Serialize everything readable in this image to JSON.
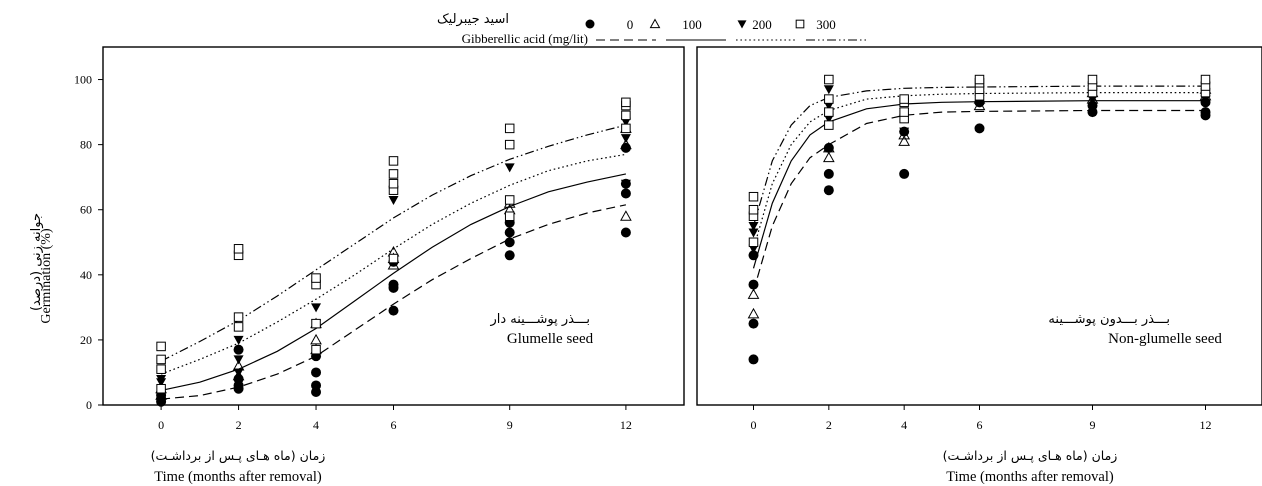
{
  "legend": {
    "title_fa": "اسید جیبرلیک",
    "title_en": "Gibberellic acid (mg/lit)",
    "entries": [
      {
        "label": "0",
        "marker": "filled-circle",
        "line": "dashed"
      },
      {
        "label": "100",
        "marker": "open-triangle",
        "line": "solid"
      },
      {
        "label": "200",
        "marker": "filled-triangle-down",
        "line": "dotted"
      },
      {
        "label": "300",
        "marker": "open-square",
        "line": "dash-dot-dot"
      }
    ]
  },
  "ylabel_fa": "جوانه زنی (درصد)",
  "ylabel_en": "Germination (%)",
  "chart_data": [
    {
      "type": "scatter",
      "panel_fa": "بـــذر پوشـــینه دار",
      "panel_en": "Glumelle seed",
      "xlabel_fa": "زمان (ماه هـای پـس از برداشـت)",
      "xlabel_en": "Time (months after removal)",
      "x_ticks": [
        "0",
        "2",
        "4",
        "6",
        "9",
        "12"
      ],
      "y_ticks": [
        "0",
        "20",
        "40",
        "60",
        "80",
        "100"
      ],
      "xlim": [
        -1.5,
        13.5
      ],
      "ylim": [
        0,
        110
      ],
      "series": [
        {
          "name": "0",
          "marker": "filled-circle",
          "line": "dashed",
          "points": [
            [
              0,
              1
            ],
            [
              0,
              2
            ],
            [
              0,
              3
            ],
            [
              2,
              5
            ],
            [
              2,
              6
            ],
            [
              2,
              8
            ],
            [
              2,
              17
            ],
            [
              4,
              4
            ],
            [
              4,
              6
            ],
            [
              4,
              10
            ],
            [
              4,
              15
            ],
            [
              6,
              29
            ],
            [
              6,
              36
            ],
            [
              6,
              37
            ],
            [
              6,
              44
            ],
            [
              9,
              46
            ],
            [
              9,
              50
            ],
            [
              9,
              53
            ],
            [
              9,
              56
            ],
            [
              12,
              53
            ],
            [
              12,
              65
            ],
            [
              12,
              68
            ],
            [
              12,
              79
            ]
          ],
          "curve": [
            [
              0,
              1.8
            ],
            [
              1,
              2.9
            ],
            [
              2,
              5.5
            ],
            [
              3,
              9.5
            ],
            [
              4,
              15
            ],
            [
              5,
              23
            ],
            [
              6,
              31
            ],
            [
              7,
              38.5
            ],
            [
              8,
              45
            ],
            [
              9,
              51
            ],
            [
              10,
              55.5
            ],
            [
              11,
              59
            ],
            [
              12,
              61.5
            ]
          ]
        },
        {
          "name": "100",
          "marker": "open-triangle",
          "line": "solid",
          "points": [
            [
              0,
              3
            ],
            [
              0,
              5
            ],
            [
              2,
              9
            ],
            [
              2,
              12
            ],
            [
              4,
              17
            ],
            [
              4,
              20
            ],
            [
              4,
              25
            ],
            [
              6,
              43
            ],
            [
              6,
              45
            ],
            [
              6,
              47
            ],
            [
              9,
              60
            ],
            [
              9,
              62
            ],
            [
              12,
              58
            ],
            [
              12,
              80
            ],
            [
              12,
              85
            ]
          ],
          "curve": [
            [
              0,
              4.5
            ],
            [
              1,
              7
            ],
            [
              2,
              11
            ],
            [
              3,
              16.5
            ],
            [
              4,
              23.5
            ],
            [
              5,
              32
            ],
            [
              6,
              40.5
            ],
            [
              7,
              48.5
            ],
            [
              8,
              55.5
            ],
            [
              9,
              61
            ],
            [
              10,
              65.5
            ],
            [
              11,
              68.5
            ],
            [
              12,
              71
            ]
          ]
        },
        {
          "name": "200",
          "marker": "filled-triangle-down",
          "line": "dotted",
          "points": [
            [
              0,
              7
            ],
            [
              0,
              8
            ],
            [
              2,
              10
            ],
            [
              2,
              14
            ],
            [
              2,
              20
            ],
            [
              4,
              25
            ],
            [
              4,
              30
            ],
            [
              6,
              36
            ],
            [
              6,
              63
            ],
            [
              6,
              66
            ],
            [
              9,
              73
            ],
            [
              12,
              68
            ],
            [
              12,
              82
            ],
            [
              12,
              87
            ]
          ],
          "curve": [
            [
              0,
              9.5
            ],
            [
              1,
              14
            ],
            [
              2,
              19
            ],
            [
              3,
              25.5
            ],
            [
              4,
              32.5
            ],
            [
              5,
              40
            ],
            [
              6,
              48
            ],
            [
              7,
              55.5
            ],
            [
              8,
              62
            ],
            [
              9,
              67.5
            ],
            [
              10,
              72
            ],
            [
              11,
              75
            ],
            [
              12,
              77
            ]
          ]
        },
        {
          "name": "300",
          "marker": "open-square",
          "line": "dash-dot-dot",
          "points": [
            [
              0,
              5
            ],
            [
              0,
              11
            ],
            [
              0,
              14
            ],
            [
              0,
              18
            ],
            [
              2,
              24
            ],
            [
              2,
              27
            ],
            [
              2,
              46
            ],
            [
              2,
              48
            ],
            [
              4,
              17
            ],
            [
              4,
              25
            ],
            [
              4,
              37
            ],
            [
              4,
              39
            ],
            [
              6,
              45
            ],
            [
              6,
              66
            ],
            [
              6,
              68
            ],
            [
              6,
              71
            ],
            [
              6,
              75
            ],
            [
              9,
              58
            ],
            [
              9,
              63
            ],
            [
              9,
              80
            ],
            [
              9,
              85
            ],
            [
              12,
              85
            ],
            [
              12,
              89
            ],
            [
              12,
              92
            ],
            [
              12,
              93
            ]
          ],
          "curve": [
            [
              0,
              13.5
            ],
            [
              1,
              19.5
            ],
            [
              2,
              26
            ],
            [
              3,
              33.5
            ],
            [
              4,
              41.5
            ],
            [
              5,
              49.5
            ],
            [
              6,
              57.5
            ],
            [
              7,
              64.5
            ],
            [
              8,
              70.5
            ],
            [
              9,
              75.5
            ],
            [
              10,
              79.5
            ],
            [
              11,
              83
            ],
            [
              12,
              86
            ]
          ]
        }
      ]
    },
    {
      "type": "scatter",
      "panel_fa": "بـــذر بـــدون پوشـــینه",
      "panel_en": "Non-glumelle seed",
      "xlabel_fa": "زمان (ماه هـای پـس از برداشـت)",
      "xlabel_en": "Time (months after removal)",
      "x_ticks": [
        "0",
        "2",
        "4",
        "6",
        "9",
        "12"
      ],
      "y_ticks": [],
      "xlim": [
        -1.5,
        13.5
      ],
      "ylim": [
        0,
        110
      ],
      "series": [
        {
          "name": "0",
          "marker": "filled-circle",
          "line": "dashed",
          "points": [
            [
              0,
              14
            ],
            [
              0,
              25
            ],
            [
              0,
              37
            ],
            [
              0,
              46
            ],
            [
              2,
              66
            ],
            [
              2,
              71
            ],
            [
              2,
              79
            ],
            [
              4,
              71
            ],
            [
              4,
              84
            ],
            [
              6,
              85
            ],
            [
              6,
              93
            ],
            [
              9,
              90
            ],
            [
              9,
              92
            ],
            [
              12,
              89
            ],
            [
              12,
              90
            ],
            [
              12,
              93
            ]
          ],
          "curve": [
            [
              0,
              35
            ],
            [
              0.5,
              55
            ],
            [
              1,
              68
            ],
            [
              1.5,
              76
            ],
            [
              2,
              80
            ],
            [
              3,
              86.5
            ],
            [
              4,
              89
            ],
            [
              5,
              90
            ],
            [
              6,
              90.2
            ],
            [
              9,
              90.5
            ],
            [
              12,
              90.5
            ]
          ]
        },
        {
          "name": "100",
          "marker": "open-triangle",
          "line": "solid",
          "points": [
            [
              0,
              28
            ],
            [
              0,
              34
            ],
            [
              2,
              76
            ],
            [
              2,
              79
            ],
            [
              4,
              81
            ],
            [
              4,
              83
            ],
            [
              6,
              92
            ],
            [
              6,
              94
            ],
            [
              9,
              94
            ],
            [
              9,
              96
            ],
            [
              12,
              95
            ],
            [
              12,
              97
            ]
          ],
          "curve": [
            [
              0,
              42
            ],
            [
              0.5,
              62
            ],
            [
              1,
              75
            ],
            [
              1.5,
              83
            ],
            [
              2,
              87
            ],
            [
              3,
              91
            ],
            [
              4,
              92.5
            ],
            [
              5,
              93
            ],
            [
              6,
              93.2
            ],
            [
              9,
              93.5
            ],
            [
              12,
              93.5
            ]
          ]
        },
        {
          "name": "200",
          "marker": "filled-triangle-down",
          "line": "dotted",
          "points": [
            [
              0,
              48
            ],
            [
              0,
              53
            ],
            [
              0,
              55
            ],
            [
              2,
              88
            ],
            [
              2,
              92
            ],
            [
              2,
              97
            ],
            [
              4,
              84
            ],
            [
              4,
              90
            ],
            [
              6,
              94
            ],
            [
              6,
              96
            ],
            [
              9,
              94
            ],
            [
              9,
              97
            ],
            [
              12,
              94
            ],
            [
              12,
              96
            ],
            [
              12,
              98
            ]
          ],
          "curve": [
            [
              0,
              48
            ],
            [
              0.5,
              68
            ],
            [
              1,
              80
            ],
            [
              1.5,
              87
            ],
            [
              2,
              90.5
            ],
            [
              3,
              94
            ],
            [
              4,
              95
            ],
            [
              5,
              95.5
            ],
            [
              6,
              95.7
            ],
            [
              9,
              96
            ],
            [
              12,
              96
            ]
          ]
        },
        {
          "name": "300",
          "marker": "open-square",
          "line": "dash-dot-dot",
          "points": [
            [
              0,
              50
            ],
            [
              0,
              58
            ],
            [
              0,
              60
            ],
            [
              0,
              64
            ],
            [
              2,
              86
            ],
            [
              2,
              90
            ],
            [
              2,
              94
            ],
            [
              2,
              100
            ],
            [
              4,
              88
            ],
            [
              4,
              90
            ],
            [
              4,
              93
            ],
            [
              4,
              94
            ],
            [
              6,
              95
            ],
            [
              6,
              97
            ],
            [
              6,
              99
            ],
            [
              6,
              100
            ],
            [
              9,
              96
            ],
            [
              9,
              98
            ],
            [
              9,
              100
            ],
            [
              12,
              96
            ],
            [
              12,
              98
            ],
            [
              12,
              100
            ]
          ],
          "curve": [
            [
              0,
              55
            ],
            [
              0.5,
              75
            ],
            [
              1,
              86
            ],
            [
              1.5,
              92
            ],
            [
              2,
              94.5
            ],
            [
              3,
              96.5
            ],
            [
              4,
              97.3
            ],
            [
              5,
              97.6
            ],
            [
              6,
              97.7
            ],
            [
              9,
              98
            ],
            [
              12,
              98
            ]
          ]
        }
      ]
    }
  ]
}
